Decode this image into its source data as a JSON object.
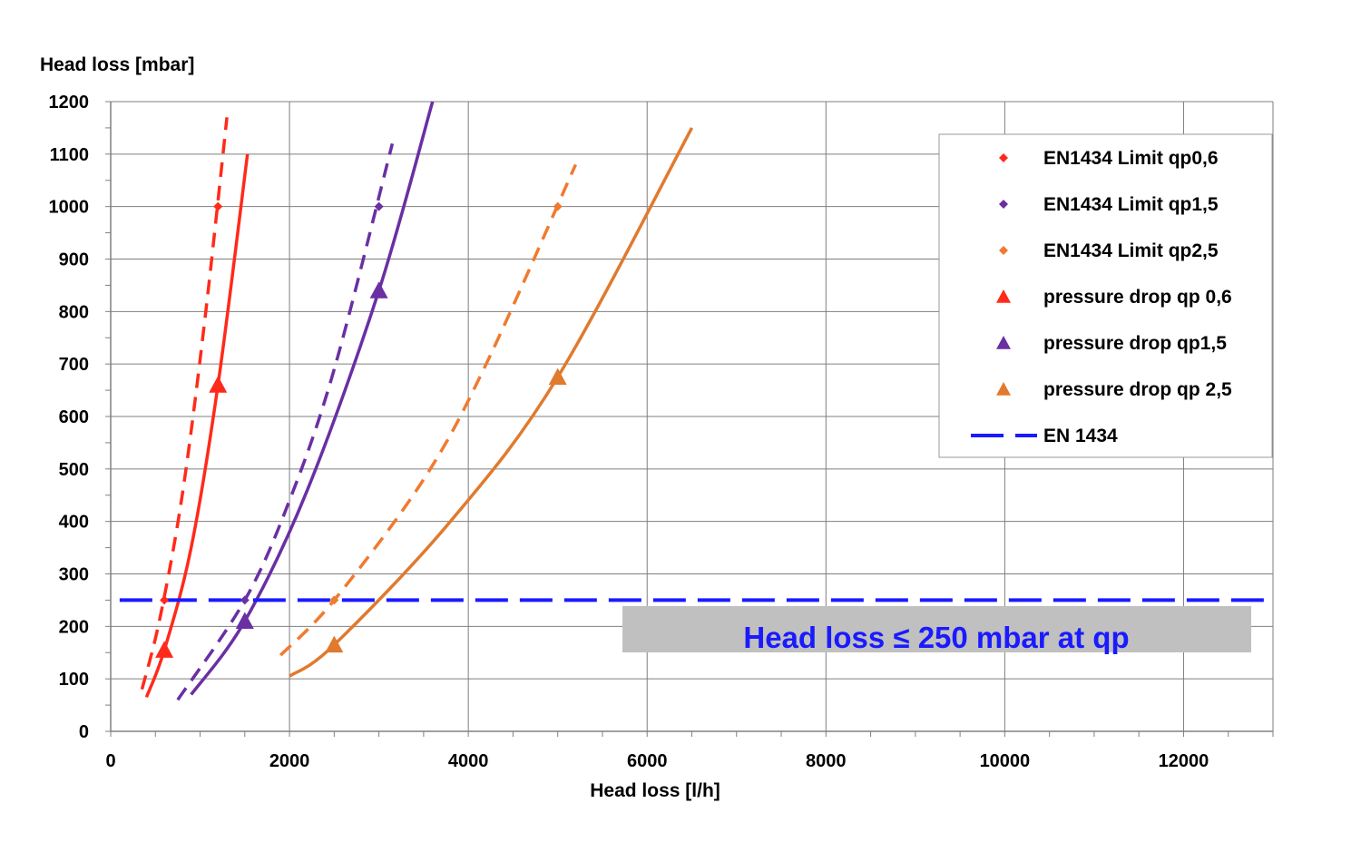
{
  "chart_data": {
    "type": "line",
    "ylabel": "Head loss [mbar]",
    "xlabel": "Head loss [l/h]",
    "xlim": [
      0,
      13000
    ],
    "ylim": [
      0,
      1200
    ],
    "xticks": [
      0,
      2000,
      4000,
      6000,
      8000,
      10000,
      12000
    ],
    "yticks": [
      0,
      100,
      200,
      300,
      400,
      500,
      600,
      700,
      800,
      900,
      1000,
      1100,
      1200
    ],
    "grid": true,
    "legend_position": "top-right",
    "colors": {
      "qp06": "#ff2a1a",
      "qp15": "#6a2fa3",
      "qp25": "#e07a2e",
      "qp25_limit": "#f07a30",
      "en1434": "#1a1aff",
      "banner_bg": "#c0c0c0"
    },
    "series": [
      {
        "name": "EN1434 Limit qp0,6",
        "marker": "diamond",
        "color": "#ff2a1a",
        "x": [
          600,
          1200
        ],
        "y": [
          250,
          1000
        ]
      },
      {
        "name": "EN1434 Limit qp1,5",
        "marker": "diamond",
        "color": "#6a2fa3",
        "x": [
          1500,
          3000
        ],
        "y": [
          250,
          1000
        ]
      },
      {
        "name": "EN1434 Limit qp2,5",
        "marker": "diamond",
        "color": "#f07a30",
        "x": [
          2500,
          5000
        ],
        "y": [
          250,
          1000
        ]
      },
      {
        "name": "pressure drop qp 0,6",
        "marker": "triangle",
        "color": "#ff2a1a",
        "x": [
          600,
          1200
        ],
        "y": [
          155,
          660
        ]
      },
      {
        "name": "pressure drop qp1,5",
        "marker": "triangle",
        "color": "#6a2fa3",
        "x": [
          1500,
          3000
        ],
        "y": [
          210,
          840
        ]
      },
      {
        "name": "pressure drop qp 2,5",
        "marker": "triangle",
        "color": "#e07a2e",
        "x": [
          2500,
          5000
        ],
        "y": [
          165,
          675
        ]
      },
      {
        "name": "EN 1434",
        "marker": "none",
        "color": "#1a1aff",
        "x": [
          100,
          13000
        ],
        "y": [
          250,
          250
        ]
      }
    ],
    "curves": [
      {
        "style": "dashed",
        "color": "#ff2a1a",
        "x": [
          350,
          550,
          800,
          1050,
          1300
        ],
        "y": [
          80,
          215,
          450,
          780,
          1170
        ]
      },
      {
        "style": "solid",
        "color": "#ff2a1a",
        "x": [
          400,
          600,
          900,
          1200,
          1530
        ],
        "y": [
          65,
          155,
          350,
          660,
          1100
        ]
      },
      {
        "style": "dashed",
        "color": "#6a2fa3",
        "x": [
          750,
          1500,
          2000,
          2500,
          3150
        ],
        "y": [
          60,
          250,
          440,
          690,
          1120
        ]
      },
      {
        "style": "solid",
        "color": "#6a2fa3",
        "x": [
          900,
          1500,
          2200,
          3000,
          3600
        ],
        "y": [
          70,
          210,
          460,
          840,
          1200
        ]
      },
      {
        "style": "dashed",
        "color": "#f07a30",
        "x": [
          1900,
          2500,
          3500,
          4200,
          5200
        ],
        "y": [
          145,
          250,
          480,
          700,
          1080
        ]
      },
      {
        "style": "solid",
        "color": "#e07a2e",
        "x": [
          2000,
          2500,
          3800,
          5000,
          6500
        ],
        "y": [
          105,
          165,
          400,
          675,
          1150
        ]
      }
    ],
    "annotation": "Head loss ≤ 250 mbar at qp"
  }
}
